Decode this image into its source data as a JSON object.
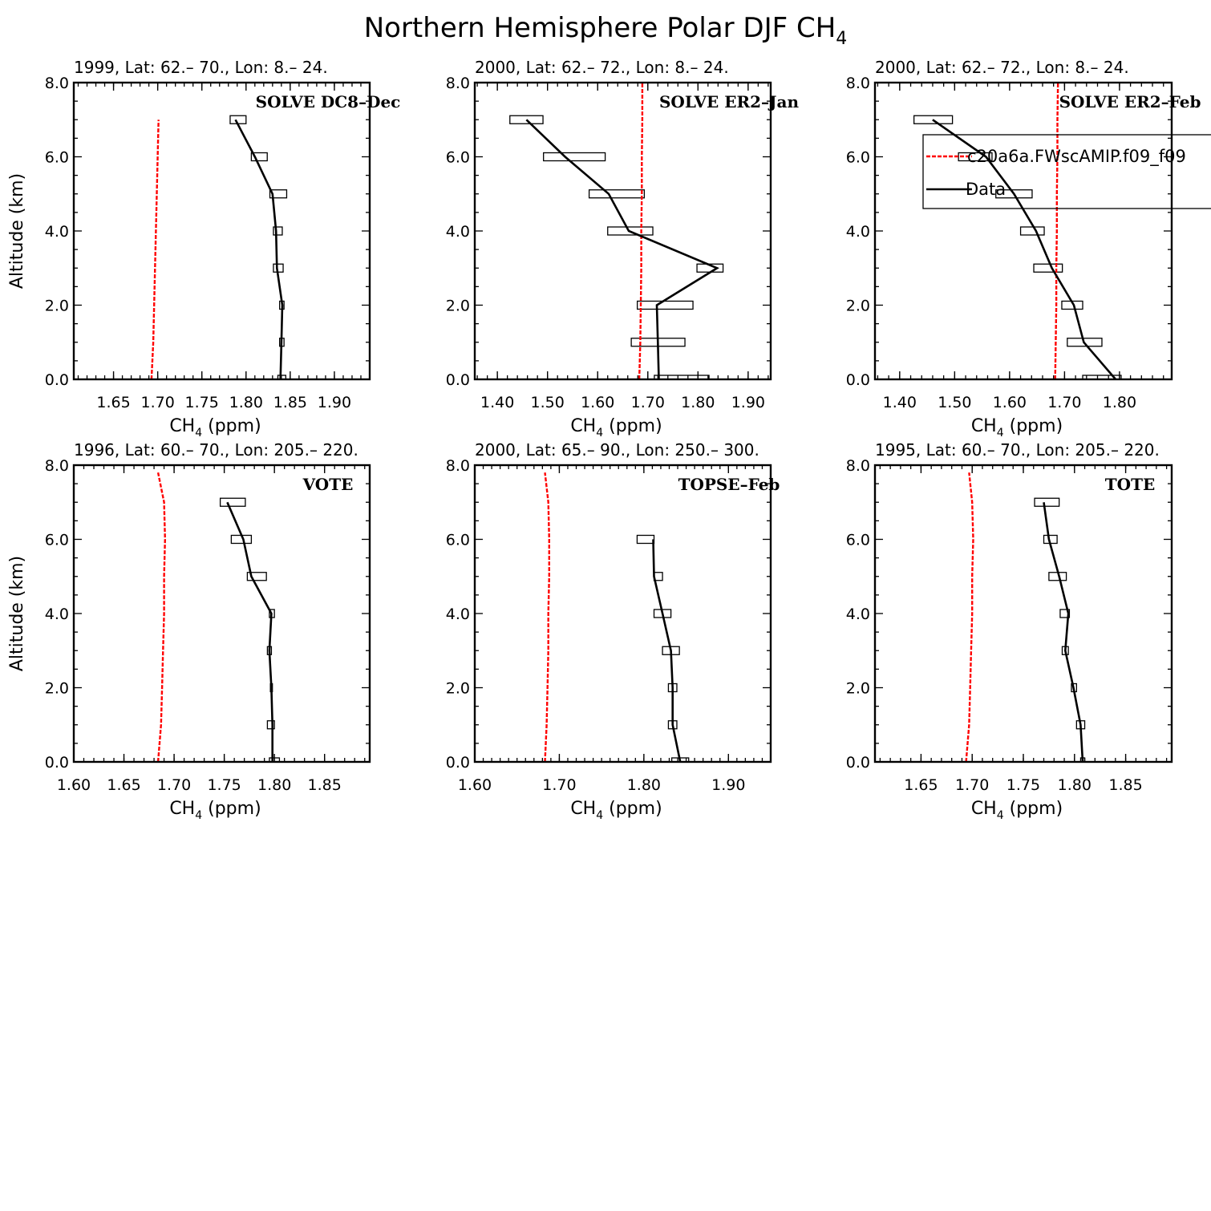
{
  "figure": {
    "title_main": "Northern Hemisphere Polar DJF CH",
    "title_sub": "4"
  },
  "legend": {
    "model_label": "c20a6a.FWscAMIP.f09_f09",
    "data_label": "Data",
    "model_color": "#ff0000",
    "data_color": "#000000"
  },
  "chart_data": [
    {
      "type": "line",
      "title": "1999, Lat: 62.– 70., Lon: 8.– 24.",
      "campaign": "SOLVE DC8–Dec",
      "xlabel_main": "CH",
      "xlabel_sub": "4",
      "xlabel_tail": " (ppm)",
      "ylabel": "Altitude (km)",
      "xlim": [
        1.605,
        1.94
      ],
      "ylim": [
        0,
        8
      ],
      "xticks": [
        1.65,
        1.7,
        1.75,
        1.8,
        1.85,
        1.9
      ],
      "xtick_labels": [
        "1.65",
        "1.70",
        "1.75",
        "1.80",
        "1.85",
        "1.90"
      ],
      "xminor": 0.01,
      "yticks": [
        0,
        2,
        4,
        6,
        8
      ],
      "ytick_labels": [
        "0.0",
        "2.0",
        "4.0",
        "6.0",
        "8.0"
      ],
      "model": {
        "x": [
          1.693,
          1.695,
          1.696,
          1.697,
          1.698,
          1.699,
          1.7,
          1.701
        ],
        "y": [
          0,
          1,
          2,
          3,
          4,
          5,
          6,
          7
        ]
      },
      "data": {
        "x": [
          1.839,
          1.84,
          1.841,
          1.835,
          1.834,
          1.83,
          1.81,
          1.788
        ],
        "y": [
          0,
          1,
          2,
          3,
          4,
          5,
          6,
          7
        ]
      },
      "boxes": [
        {
          "y": 0,
          "x1": 1.836,
          "x2": 1.845
        },
        {
          "y": 1,
          "x1": 1.838,
          "x2": 1.843
        },
        {
          "y": 2,
          "x1": 1.838,
          "x2": 1.843
        },
        {
          "y": 3,
          "x1": 1.831,
          "x2": 1.842
        },
        {
          "y": 4,
          "x1": 1.831,
          "x2": 1.841
        },
        {
          "y": 5,
          "x1": 1.827,
          "x2": 1.846
        },
        {
          "y": 6,
          "x1": 1.806,
          "x2": 1.824
        },
        {
          "y": 7,
          "x1": 1.782,
          "x2": 1.8
        }
      ]
    },
    {
      "type": "line",
      "title": "2000, Lat: 62.– 72., Lon: 8.– 24.",
      "campaign": "SOLVE ER2–Jan",
      "xlabel_main": "CH",
      "xlabel_sub": "4",
      "xlabel_tail": " (ppm)",
      "ylabel": "",
      "xlim": [
        1.355,
        1.945
      ],
      "ylim": [
        0,
        8
      ],
      "xticks": [
        1.4,
        1.5,
        1.6,
        1.7,
        1.8,
        1.9
      ],
      "xtick_labels": [
        "1.40",
        "1.50",
        "1.60",
        "1.70",
        "1.80",
        "1.90"
      ],
      "xminor": 0.02,
      "yticks": [
        0,
        2,
        4,
        6,
        8
      ],
      "ytick_labels": [
        "0.0",
        "2.0",
        "4.0",
        "6.0",
        "8.0"
      ],
      "model": {
        "x": [
          1.683,
          1.685,
          1.686,
          1.687,
          1.687,
          1.688,
          1.688,
          1.689,
          1.689
        ],
        "y": [
          0,
          1,
          2,
          3,
          4,
          5,
          6,
          7,
          8
        ]
      },
      "data": {
        "x": [
          1.722,
          1.72,
          1.718,
          1.838,
          1.662,
          1.622,
          1.535,
          1.458
        ],
        "y": [
          0,
          1,
          2,
          3,
          4,
          5,
          6,
          7
        ]
      },
      "boxes": [
        {
          "y": 0,
          "x1": 1.713,
          "x2": 1.822
        },
        {
          "y": 1,
          "x1": 1.667,
          "x2": 1.774
        },
        {
          "y": 2,
          "x1": 1.679,
          "x2": 1.79
        },
        {
          "y": 3,
          "x1": 1.798,
          "x2": 1.85
        },
        {
          "y": 4,
          "x1": 1.62,
          "x2": 1.71
        },
        {
          "y": 5,
          "x1": 1.583,
          "x2": 1.693
        },
        {
          "y": 6,
          "x1": 1.492,
          "x2": 1.615
        },
        {
          "y": 7,
          "x1": 1.425,
          "x2": 1.491
        }
      ]
    },
    {
      "type": "line",
      "title": "2000, Lat: 62.– 72., Lon: 8.– 24.",
      "campaign": "SOLVE ER2–Feb",
      "xlabel_main": "CH",
      "xlabel_sub": "4",
      "xlabel_tail": " (ppm)",
      "ylabel": "",
      "xlim": [
        1.355,
        1.895
      ],
      "ylim": [
        0,
        8
      ],
      "xticks": [
        1.4,
        1.5,
        1.6,
        1.7,
        1.8
      ],
      "xtick_labels": [
        "1.40",
        "1.50",
        "1.60",
        "1.70",
        "1.80"
      ],
      "xminor": 0.02,
      "yticks": [
        0,
        2,
        4,
        6,
        8
      ],
      "ytick_labels": [
        "0.0",
        "2.0",
        "4.0",
        "6.0",
        "8.0"
      ],
      "model": {
        "x": [
          1.683,
          1.684,
          1.685,
          1.685,
          1.686,
          1.686,
          1.687,
          1.687,
          1.688
        ],
        "y": [
          0,
          1,
          2,
          3,
          4,
          5,
          6,
          7,
          8
        ]
      },
      "data": {
        "x": [
          1.793,
          1.735,
          1.717,
          1.677,
          1.648,
          1.608,
          1.557,
          1.46
        ],
        "y": [
          0,
          1,
          2,
          3,
          4,
          5,
          6,
          7
        ]
      },
      "boxes": [
        {
          "y": 0,
          "x1": 1.733,
          "x2": 1.803
        },
        {
          "y": 1,
          "x1": 1.705,
          "x2": 1.768
        },
        {
          "y": 2,
          "x1": 1.695,
          "x2": 1.733
        },
        {
          "y": 3,
          "x1": 1.644,
          "x2": 1.696
        },
        {
          "y": 4,
          "x1": 1.62,
          "x2": 1.663
        },
        {
          "y": 5,
          "x1": 1.575,
          "x2": 1.641
        },
        {
          "y": 6,
          "x1": 1.507,
          "x2": 1.568
        },
        {
          "y": 7,
          "x1": 1.426,
          "x2": 1.496
        }
      ]
    },
    {
      "type": "line",
      "title": "1996, Lat: 60.– 70., Lon: 205.– 220.",
      "campaign": "VOTE",
      "xlabel_main": "CH",
      "xlabel_sub": "4",
      "xlabel_tail": " (ppm)",
      "ylabel": "Altitude (km)",
      "xlim": [
        1.6,
        1.895
      ],
      "ylim": [
        0,
        8
      ],
      "xticks": [
        1.6,
        1.65,
        1.7,
        1.75,
        1.8,
        1.85
      ],
      "xtick_labels": [
        "1.60",
        "1.65",
        "1.70",
        "1.75",
        "1.80",
        "1.85"
      ],
      "xminor": 0.01,
      "yticks": [
        0,
        2,
        4,
        6,
        8
      ],
      "ytick_labels": [
        "0.0",
        "2.0",
        "4.0",
        "6.0",
        "8.0"
      ],
      "model": {
        "x": [
          1.684,
          1.687,
          1.688,
          1.689,
          1.69,
          1.69,
          1.691,
          1.69,
          1.684
        ],
        "y": [
          0,
          1,
          2,
          3,
          4,
          5,
          6,
          7,
          7.8
        ]
      },
      "data": {
        "x": [
          1.798,
          1.798,
          1.797,
          1.795,
          1.797,
          1.777,
          1.769,
          1.753
        ],
        "y": [
          0,
          1,
          2,
          3,
          4,
          5,
          6,
          7
        ]
      },
      "boxes": [
        {
          "y": 0,
          "x1": 1.795,
          "x2": 1.805
        },
        {
          "y": 1,
          "x1": 1.793,
          "x2": 1.8
        },
        {
          "y": 2,
          "x1": 1.796,
          "x2": 1.798
        },
        {
          "y": 3,
          "x1": 1.793,
          "x2": 1.797
        },
        {
          "y": 4,
          "x1": 1.795,
          "x2": 1.8
        },
        {
          "y": 5,
          "x1": 1.773,
          "x2": 1.792
        },
        {
          "y": 6,
          "x1": 1.757,
          "x2": 1.777
        },
        {
          "y": 7,
          "x1": 1.746,
          "x2": 1.771
        }
      ]
    },
    {
      "type": "line",
      "title": "2000, Lat: 65.– 90., Lon: 250.– 300.",
      "campaign": "TOPSE–Feb",
      "xlabel_main": "CH",
      "xlabel_sub": "4",
      "xlabel_tail": " (ppm)",
      "ylabel": "",
      "xlim": [
        1.6,
        1.95
      ],
      "ylim": [
        0,
        8
      ],
      "xticks": [
        1.6,
        1.7,
        1.8,
        1.9
      ],
      "xtick_labels": [
        "1.60",
        "1.70",
        "1.80",
        "1.90"
      ],
      "xminor": 0.01,
      "yticks": [
        0,
        2,
        4,
        6,
        8
      ],
      "ytick_labels": [
        "0.0",
        "2.0",
        "4.0",
        "6.0",
        "8.0"
      ],
      "model": {
        "x": [
          1.683,
          1.685,
          1.686,
          1.687,
          1.687,
          1.688,
          1.688,
          1.687,
          1.683
        ],
        "y": [
          0,
          1,
          2,
          3,
          4,
          5,
          6,
          7,
          7.8
        ]
      },
      "data": {
        "x": [
          1.843,
          1.834,
          1.834,
          1.832,
          1.822,
          1.812,
          1.811
        ],
        "y": [
          0,
          1,
          2,
          3,
          4,
          5,
          6
        ]
      },
      "boxes": [
        {
          "y": 0,
          "x1": 1.833,
          "x2": 1.853
        },
        {
          "y": 1,
          "x1": 1.829,
          "x2": 1.839
        },
        {
          "y": 2,
          "x1": 1.829,
          "x2": 1.839
        },
        {
          "y": 3,
          "x1": 1.822,
          "x2": 1.842
        },
        {
          "y": 4,
          "x1": 1.812,
          "x2": 1.832
        },
        {
          "y": 5,
          "x1": 1.812,
          "x2": 1.822
        },
        {
          "y": 6,
          "x1": 1.792,
          "x2": 1.812
        }
      ]
    },
    {
      "type": "line",
      "title": "1995, Lat: 60.– 70., Lon: 205.– 220.",
      "campaign": "TOTE",
      "xlabel_main": "CH",
      "xlabel_sub": "4",
      "xlabel_tail": " (ppm)",
      "ylabel": "",
      "xlim": [
        1.605,
        1.895
      ],
      "ylim": [
        0,
        8
      ],
      "xticks": [
        1.65,
        1.7,
        1.75,
        1.8,
        1.85
      ],
      "xtick_labels": [
        "1.65",
        "1.70",
        "1.75",
        "1.80",
        "1.85"
      ],
      "xminor": 0.01,
      "yticks": [
        0,
        2,
        4,
        6,
        8
      ],
      "ytick_labels": [
        "0.0",
        "2.0",
        "4.0",
        "6.0",
        "8.0"
      ],
      "model": {
        "x": [
          1.694,
          1.697,
          1.698,
          1.699,
          1.7,
          1.7,
          1.701,
          1.7,
          1.697
        ],
        "y": [
          0,
          1,
          2,
          3,
          4,
          5,
          6,
          7,
          7.8
        ]
      },
      "data": {
        "x": [
          1.808,
          1.806,
          1.799,
          1.791,
          1.794,
          1.785,
          1.775,
          1.77
        ],
        "y": [
          0,
          1,
          2,
          3,
          4,
          5,
          6,
          7
        ]
      },
      "boxes": [
        {
          "y": 0,
          "x1": 1.806,
          "x2": 1.81
        },
        {
          "y": 1,
          "x1": 1.802,
          "x2": 1.81
        },
        {
          "y": 2,
          "x1": 1.797,
          "x2": 1.802
        },
        {
          "y": 3,
          "x1": 1.788,
          "x2": 1.794
        },
        {
          "y": 4,
          "x1": 1.786,
          "x2": 1.795
        },
        {
          "y": 5,
          "x1": 1.775,
          "x2": 1.792
        },
        {
          "y": 6,
          "x1": 1.77,
          "x2": 1.783
        },
        {
          "y": 7,
          "x1": 1.761,
          "x2": 1.785
        }
      ]
    }
  ]
}
